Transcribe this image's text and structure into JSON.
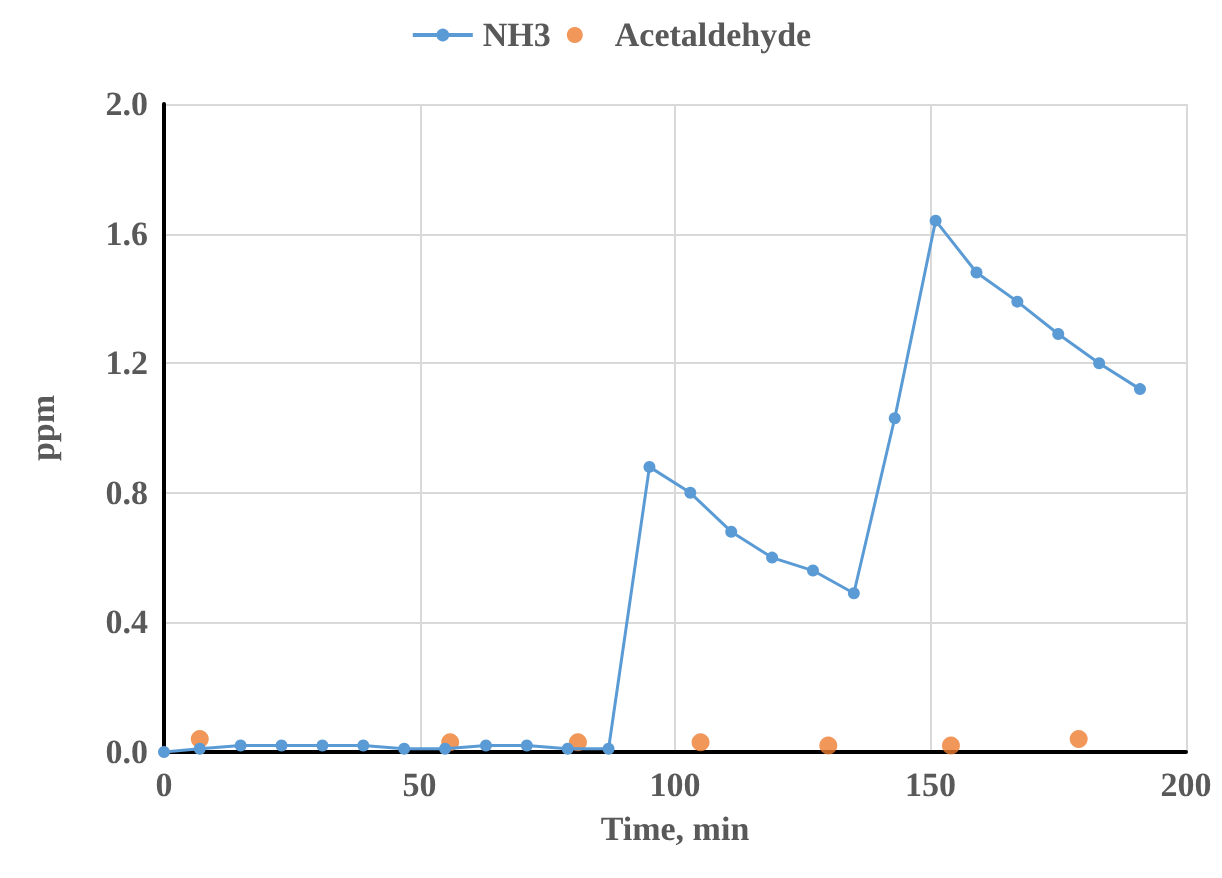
{
  "chart_data": {
    "type": "line",
    "xlabel": "Time, min",
    "ylabel": "ppm",
    "xlim": [
      0,
      200
    ],
    "xticks": [
      0,
      50,
      100,
      150,
      200
    ],
    "ylim": [
      0,
      2.0
    ],
    "yticks": [
      {
        "value": 0,
        "label": "0.0"
      },
      {
        "value": 0.4,
        "label": "0.4"
      },
      {
        "value": 0.8,
        "label": "0.8"
      },
      {
        "value": 1.2,
        "label": "1.2"
      },
      {
        "value": 1.6,
        "label": "1.6"
      },
      {
        "value": 2.0,
        "label": "2.0"
      }
    ],
    "grid": true,
    "legend": "top",
    "marker": "circle",
    "series": [
      {
        "name": "NH3",
        "color": "#5b9bd5",
        "x": [
          0,
          7,
          15,
          23,
          31,
          39,
          47,
          55,
          63,
          71,
          79,
          87,
          95,
          103,
          111,
          119,
          127,
          135,
          143,
          151,
          159,
          167,
          175,
          183,
          191
        ],
        "values": [
          0,
          0.01,
          0.02,
          0.02,
          0.02,
          0.02,
          0.01,
          0.01,
          0.02,
          0.02,
          0.01,
          0.01,
          0.88,
          0.8,
          0.68,
          0.6,
          0.56,
          0.49,
          1.03,
          1.64,
          1.48,
          1.39,
          1.29,
          1.2,
          1.12
        ]
      },
      {
        "name": "Acetaldehyde",
        "type": "scatter",
        "color": "#ed7d31",
        "x": [
          7,
          56,
          81,
          105,
          130,
          154,
          179
        ],
        "values": [
          0.04,
          0.03,
          0.03,
          0.03,
          0.02,
          0.02,
          0.04
        ]
      }
    ]
  }
}
